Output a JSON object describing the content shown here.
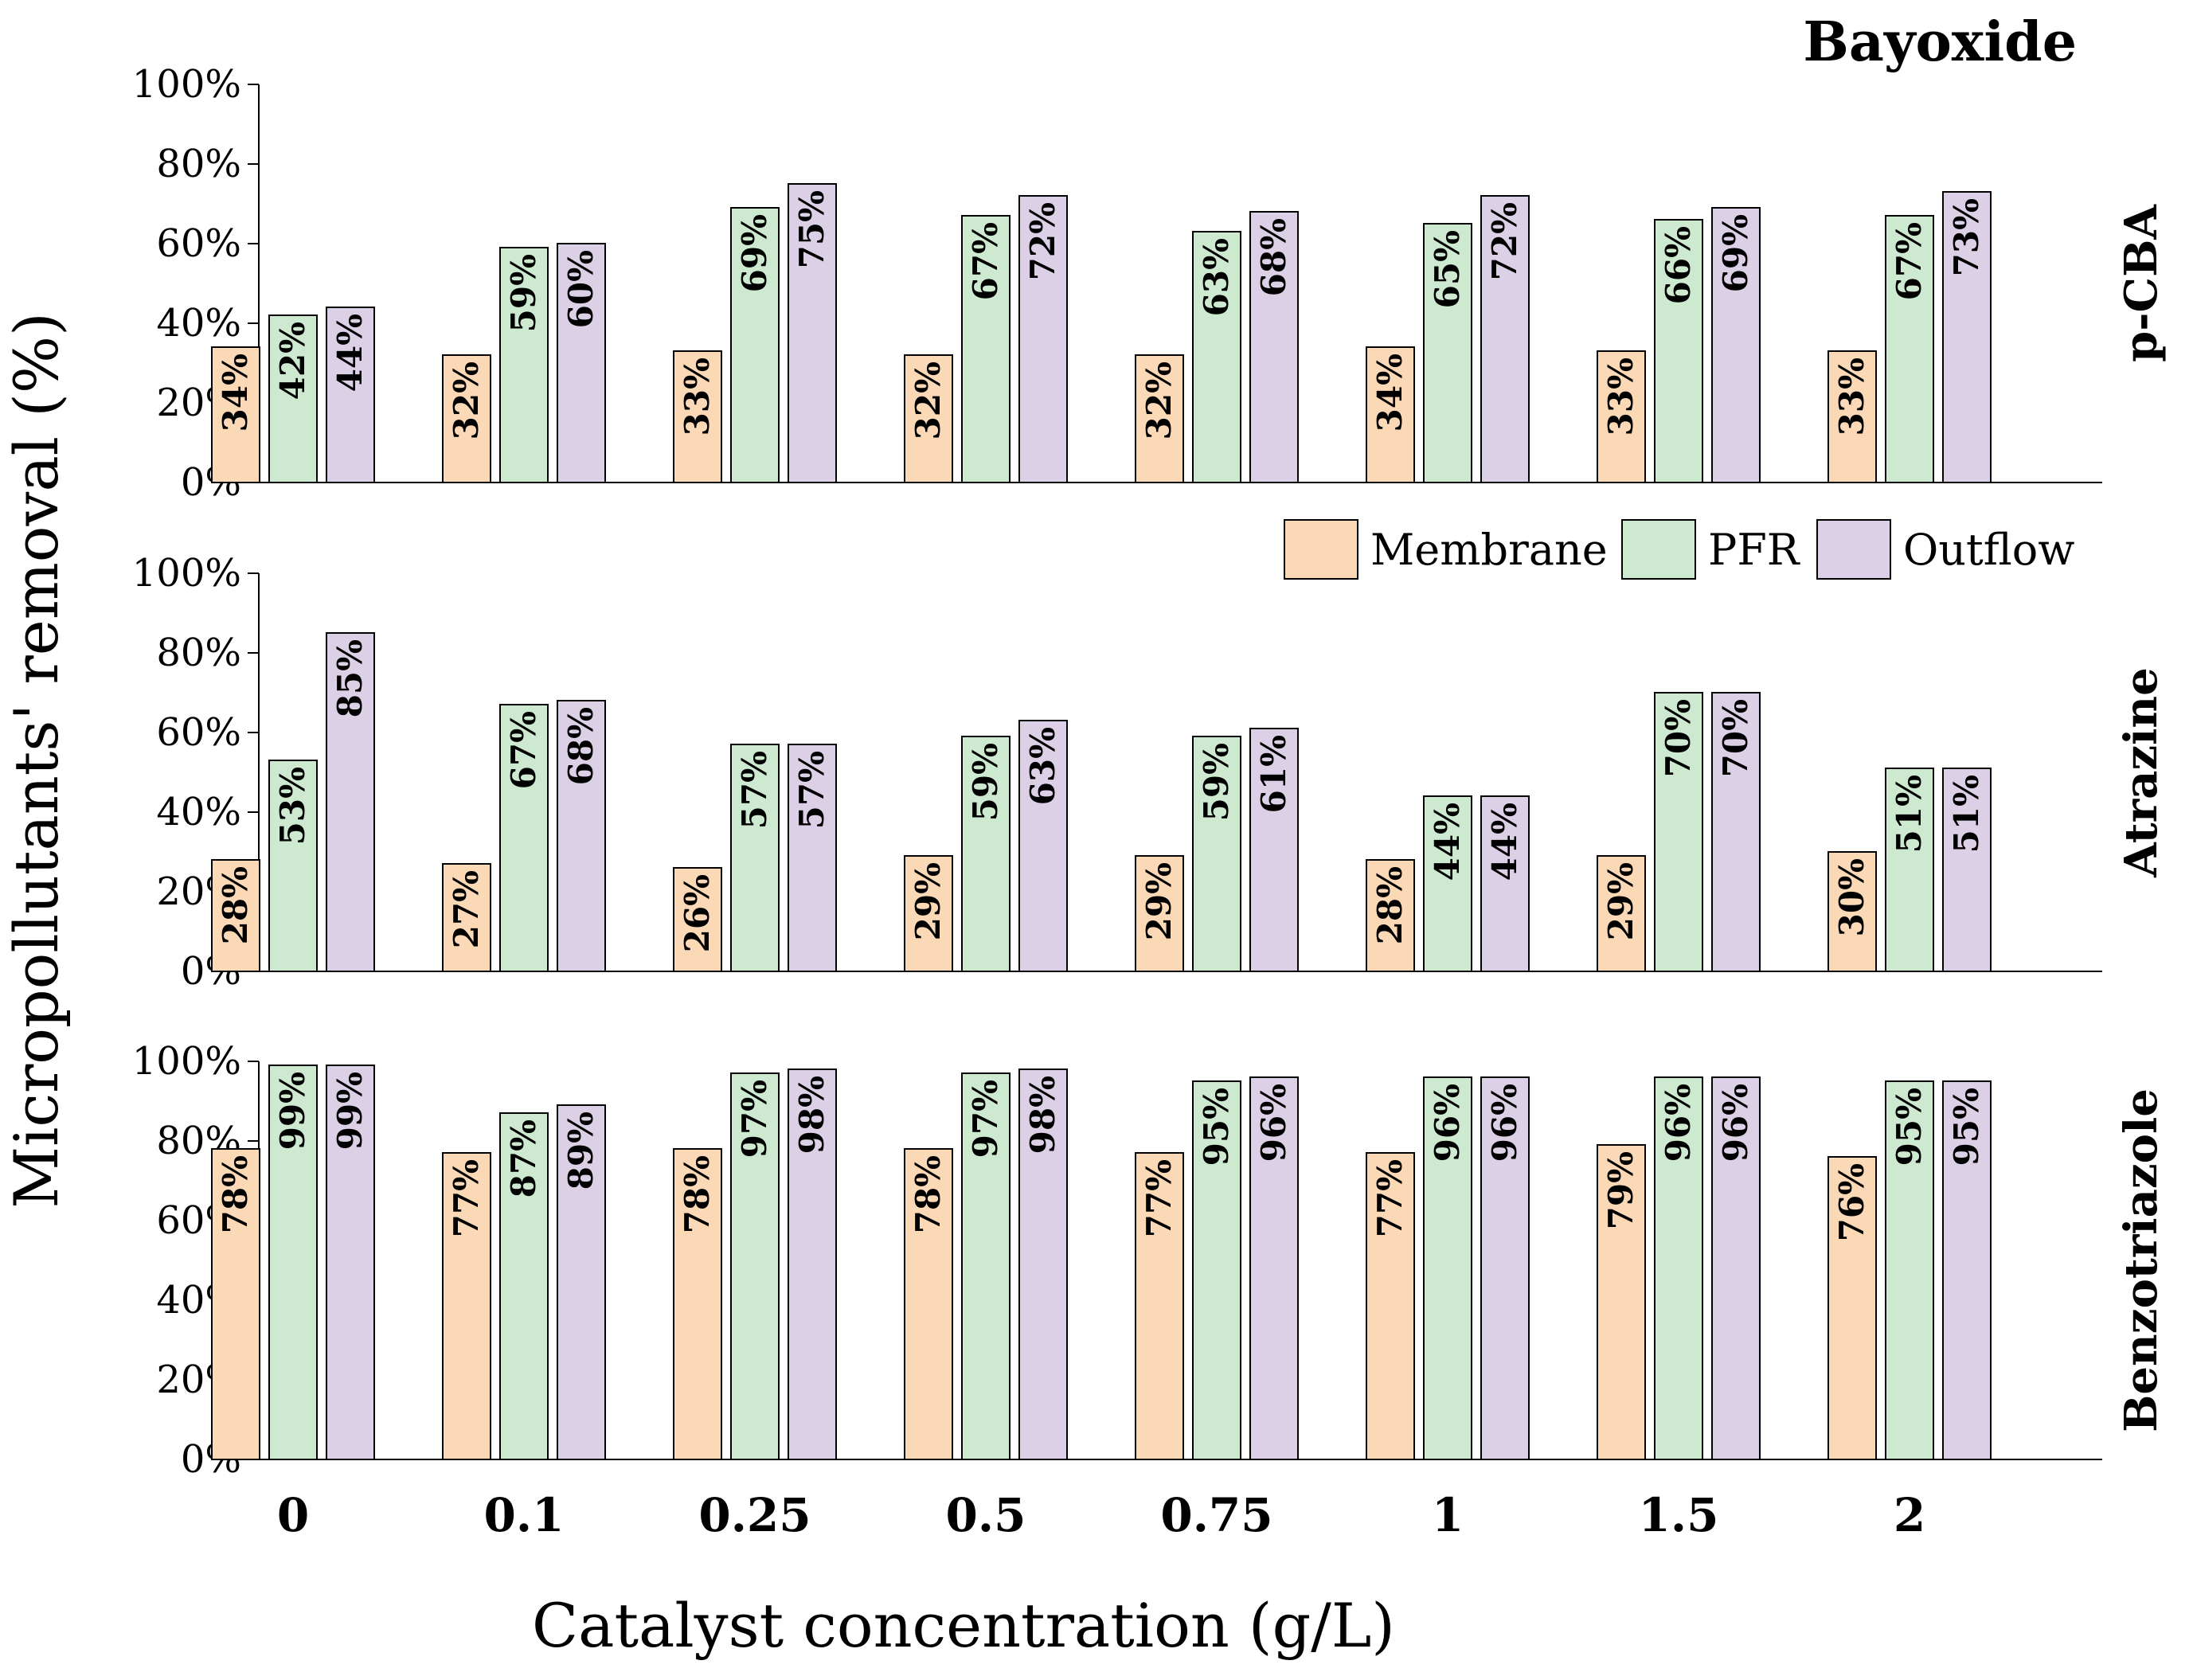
{
  "chart_data": {
    "type": "bar",
    "title": "Bayoxide",
    "xlabel": "Catalyst concentration (g/L)",
    "ylabel": "Micropollutants' removal (%)",
    "categories": [
      "0",
      "0.1",
      "0.25",
      "0.5",
      "0.75",
      "1",
      "1.5",
      "2"
    ],
    "ylim": [
      0,
      100
    ],
    "yticks": [
      "0%",
      "20%",
      "40%",
      "60%",
      "80%",
      "100%"
    ],
    "grid": false,
    "legend": {
      "placement": "top-right of middle panel",
      "entries": [
        "Membrane",
        "PFR",
        "Outflow"
      ]
    },
    "colors": {
      "Membrane": "#fcd9b6",
      "PFR": "#cde9cf",
      "Outflow": "#dcd0e7"
    },
    "panels": [
      {
        "name": "p-CBA",
        "series": [
          {
            "name": "Membrane",
            "values": [
              34,
              32,
              33,
              32,
              32,
              34,
              33,
              33
            ],
            "labels": [
              "34%",
              "32%",
              "33%",
              "32%",
              "32%",
              "34%",
              "33%",
              "33%"
            ]
          },
          {
            "name": "PFR",
            "values": [
              42,
              59,
              69,
              67,
              63,
              65,
              66,
              67
            ],
            "labels": [
              "42%",
              "59%",
              "69%",
              "67%",
              "63%",
              "65%",
              "66%",
              "67%"
            ]
          },
          {
            "name": "Outflow",
            "values": [
              44,
              60,
              75,
              72,
              68,
              72,
              69,
              73
            ],
            "labels": [
              "44%",
              "60%",
              "75%",
              "72%",
              "68%",
              "72%",
              "69%",
              "73%"
            ]
          }
        ]
      },
      {
        "name": "Atrazine",
        "series": [
          {
            "name": "Membrane",
            "values": [
              28,
              27,
              26,
              29,
              29,
              28,
              29,
              30
            ],
            "labels": [
              "28%",
              "27%",
              "26%",
              "29%",
              "29%",
              "28%",
              "29%",
              "30%"
            ]
          },
          {
            "name": "PFR",
            "values": [
              53,
              67,
              57,
              59,
              59,
              44,
              70,
              51
            ],
            "labels": [
              "53%",
              "67%",
              "57%",
              "59%",
              "59%",
              "44%",
              "70%",
              "51%"
            ]
          },
          {
            "name": "Outflow",
            "values": [
              85,
              68,
              57,
              63,
              61,
              44,
              70,
              51
            ],
            "labels": [
              "85%",
              "68%",
              "57%",
              "63%",
              "61%",
              "44%",
              "70%",
              "51%"
            ]
          }
        ]
      },
      {
        "name": "Benzotriazole",
        "series": [
          {
            "name": "Membrane",
            "values": [
              78,
              77,
              78,
              78,
              77,
              77,
              79,
              76
            ],
            "labels": [
              "78%",
              "77%",
              "78%",
              "78%",
              "77%",
              "77%",
              "79%",
              "76%"
            ]
          },
          {
            "name": "PFR",
            "values": [
              99,
              87,
              97,
              97,
              95,
              96,
              96,
              95
            ],
            "labels": [
              "99%",
              "87%",
              "97%",
              "97%",
              "95%",
              "96%",
              "96%",
              "95%"
            ]
          },
          {
            "name": "Outflow",
            "values": [
              99,
              89,
              98,
              98,
              96,
              96,
              96,
              95
            ],
            "labels": [
              "99%",
              "89%",
              "98%",
              "98%",
              "96%",
              "96%",
              "96%",
              "95%"
            ]
          }
        ]
      }
    ]
  }
}
